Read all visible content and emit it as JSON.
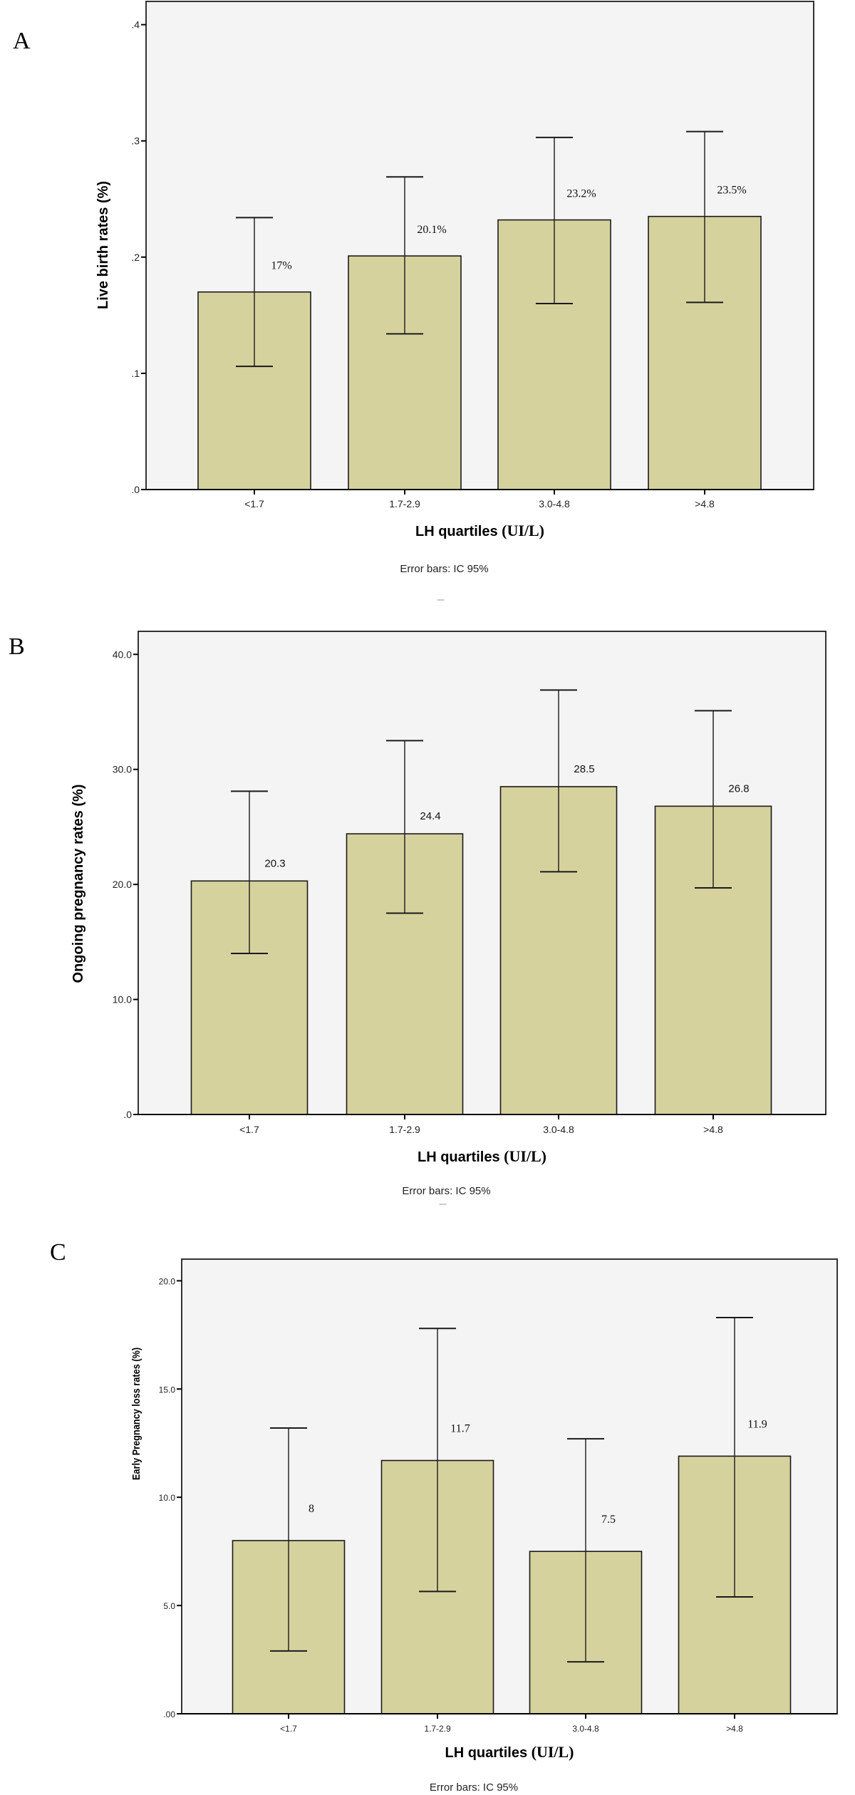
{
  "chart_data": [
    {
      "panel_label": "A",
      "type": "bar",
      "categories": [
        "<1.7",
        "1.7-2.9",
        "3.0-4.8",
        ">4.8"
      ],
      "values": [
        0.17,
        0.201,
        0.232,
        0.235
      ],
      "ci_lower": [
        0.106,
        0.134,
        0.16,
        0.161
      ],
      "ci_upper": [
        0.234,
        0.269,
        0.303,
        0.308
      ],
      "data_labels": [
        "17%",
        "20.1%",
        "23.2%",
        "23.5%"
      ],
      "ylim": [
        0,
        0.42
      ],
      "yticks": [
        0,
        0.1,
        0.2,
        0.3,
        0.4
      ],
      "ytick_labels": [
        ".0",
        ".1",
        ".2",
        ".3",
        ".4"
      ],
      "ylabel": "Live birth rates (%)",
      "xlabel_main": "LH quartiles",
      "xlabel_unit": "(UI/L)",
      "note": "Error bars: IC 95%",
      "grid": false
    },
    {
      "panel_label": "B",
      "type": "bar",
      "categories": [
        "<1.7",
        "1.7-2.9",
        "3.0-4.8",
        ">4.8"
      ],
      "values": [
        20.3,
        24.4,
        28.5,
        26.8
      ],
      "ci_lower": [
        14.0,
        17.5,
        21.1,
        19.7
      ],
      "ci_upper": [
        28.1,
        32.5,
        36.9,
        35.1
      ],
      "data_labels": [
        "20.3",
        "24.4",
        "28.5",
        "26.8"
      ],
      "ylim": [
        0,
        42
      ],
      "yticks": [
        0,
        10,
        20,
        30,
        40
      ],
      "ytick_labels": [
        ".0",
        "10.0",
        "20.0",
        "30.0",
        "40.0"
      ],
      "ylabel": "Ongoing pregnancy rates (%)",
      "xlabel_main": "LH quartiles",
      "xlabel_unit": "(UI/L)",
      "note": "Error bars: IC 95%",
      "grid": false
    },
    {
      "panel_label": "C",
      "type": "bar",
      "categories": [
        "<1.7",
        "1.7-2.9",
        "3.0-4.8",
        ">4.8"
      ],
      "values": [
        8.0,
        11.7,
        7.5,
        11.9
      ],
      "ci_lower": [
        2.9,
        5.65,
        2.4,
        5.4
      ],
      "ci_upper": [
        13.2,
        17.8,
        12.7,
        18.3
      ],
      "data_labels": [
        "8",
        "11.7",
        "7.5",
        "11.9"
      ],
      "ylim": [
        0,
        21
      ],
      "yticks": [
        0,
        5,
        10,
        15,
        20
      ],
      "ytick_labels": [
        ".00",
        "5.0",
        "10.0",
        "15.0",
        "20.0"
      ],
      "ylabel": "Early Pregnancy loss rates (%)",
      "xlabel_main": "LH quartiles",
      "xlabel_unit": "(UI/L)",
      "note": "Error bars: IC 95%",
      "grid": false
    }
  ],
  "colors": {
    "bar_fill": "#d6d29e",
    "plot_background": "#f4f4f4",
    "stroke": "#1a1a1a"
  }
}
